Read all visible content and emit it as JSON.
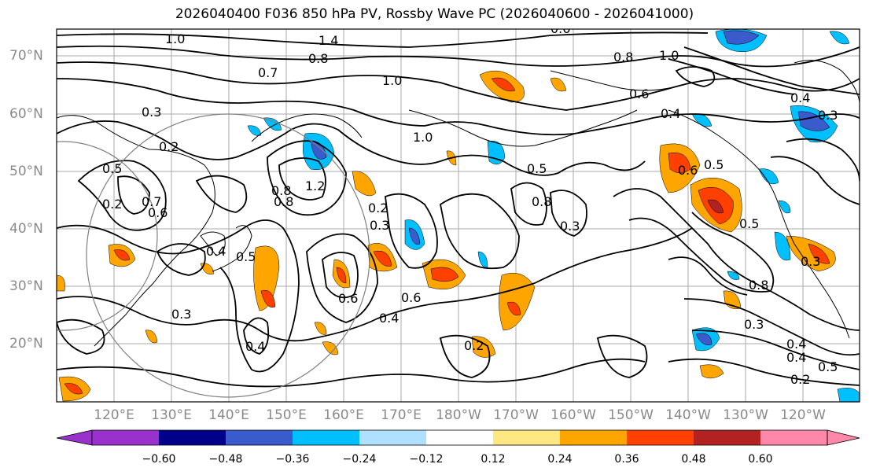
{
  "title": "2026040400 F036 850 hPa PV, Rossby Wave PC (2026040600 - 2026041000)",
  "lat_labels": [
    "70°N",
    "60°N",
    "50°N",
    "40°N",
    "30°N",
    "20°N"
  ],
  "lon_labels": [
    "120°E",
    "130°E",
    "140°E",
    "150°E",
    "160°E",
    "170°E",
    "180°W",
    "170°W",
    "160°W",
    "150°W",
    "140°W",
    "130°W",
    "120°W"
  ],
  "colorbar": {
    "ticks": [
      "−0.60",
      "−0.48",
      "−0.36",
      "−0.24",
      "−0.12",
      "0.12",
      "0.24",
      "0.36",
      "0.48",
      "0.60"
    ],
    "colors": [
      "#9932cc",
      "#00008b",
      "#3a5bcc",
      "#00bfff",
      "#b0e0ff",
      "#ffffff",
      "#ffe882",
      "#ffa500",
      "#ff4000",
      "#b22222",
      "#ff88aa"
    ]
  },
  "contour_labels": [
    "1.0",
    "1.4",
    "0.8",
    "0.7",
    "1.0",
    "0.3",
    "0.2",
    "0.5",
    "0.7",
    "0.6",
    "0.4",
    "0.8",
    "1.2",
    "0.8",
    "0.2",
    "0.3",
    "0.5",
    "0.6",
    "0.4",
    "0.3",
    "0.4",
    "0.6",
    "0.5",
    "1.0",
    "0.8",
    "0.6",
    "0.4",
    "0.3",
    "0.5",
    "0.8",
    "0.2",
    "0.3",
    "0.4",
    "0.5",
    "0.2",
    "0.6",
    "0.8",
    "1.0",
    "0.6",
    "0.4",
    "0.3",
    "0.4",
    "0.5",
    "0.3",
    "0.2"
  ]
}
